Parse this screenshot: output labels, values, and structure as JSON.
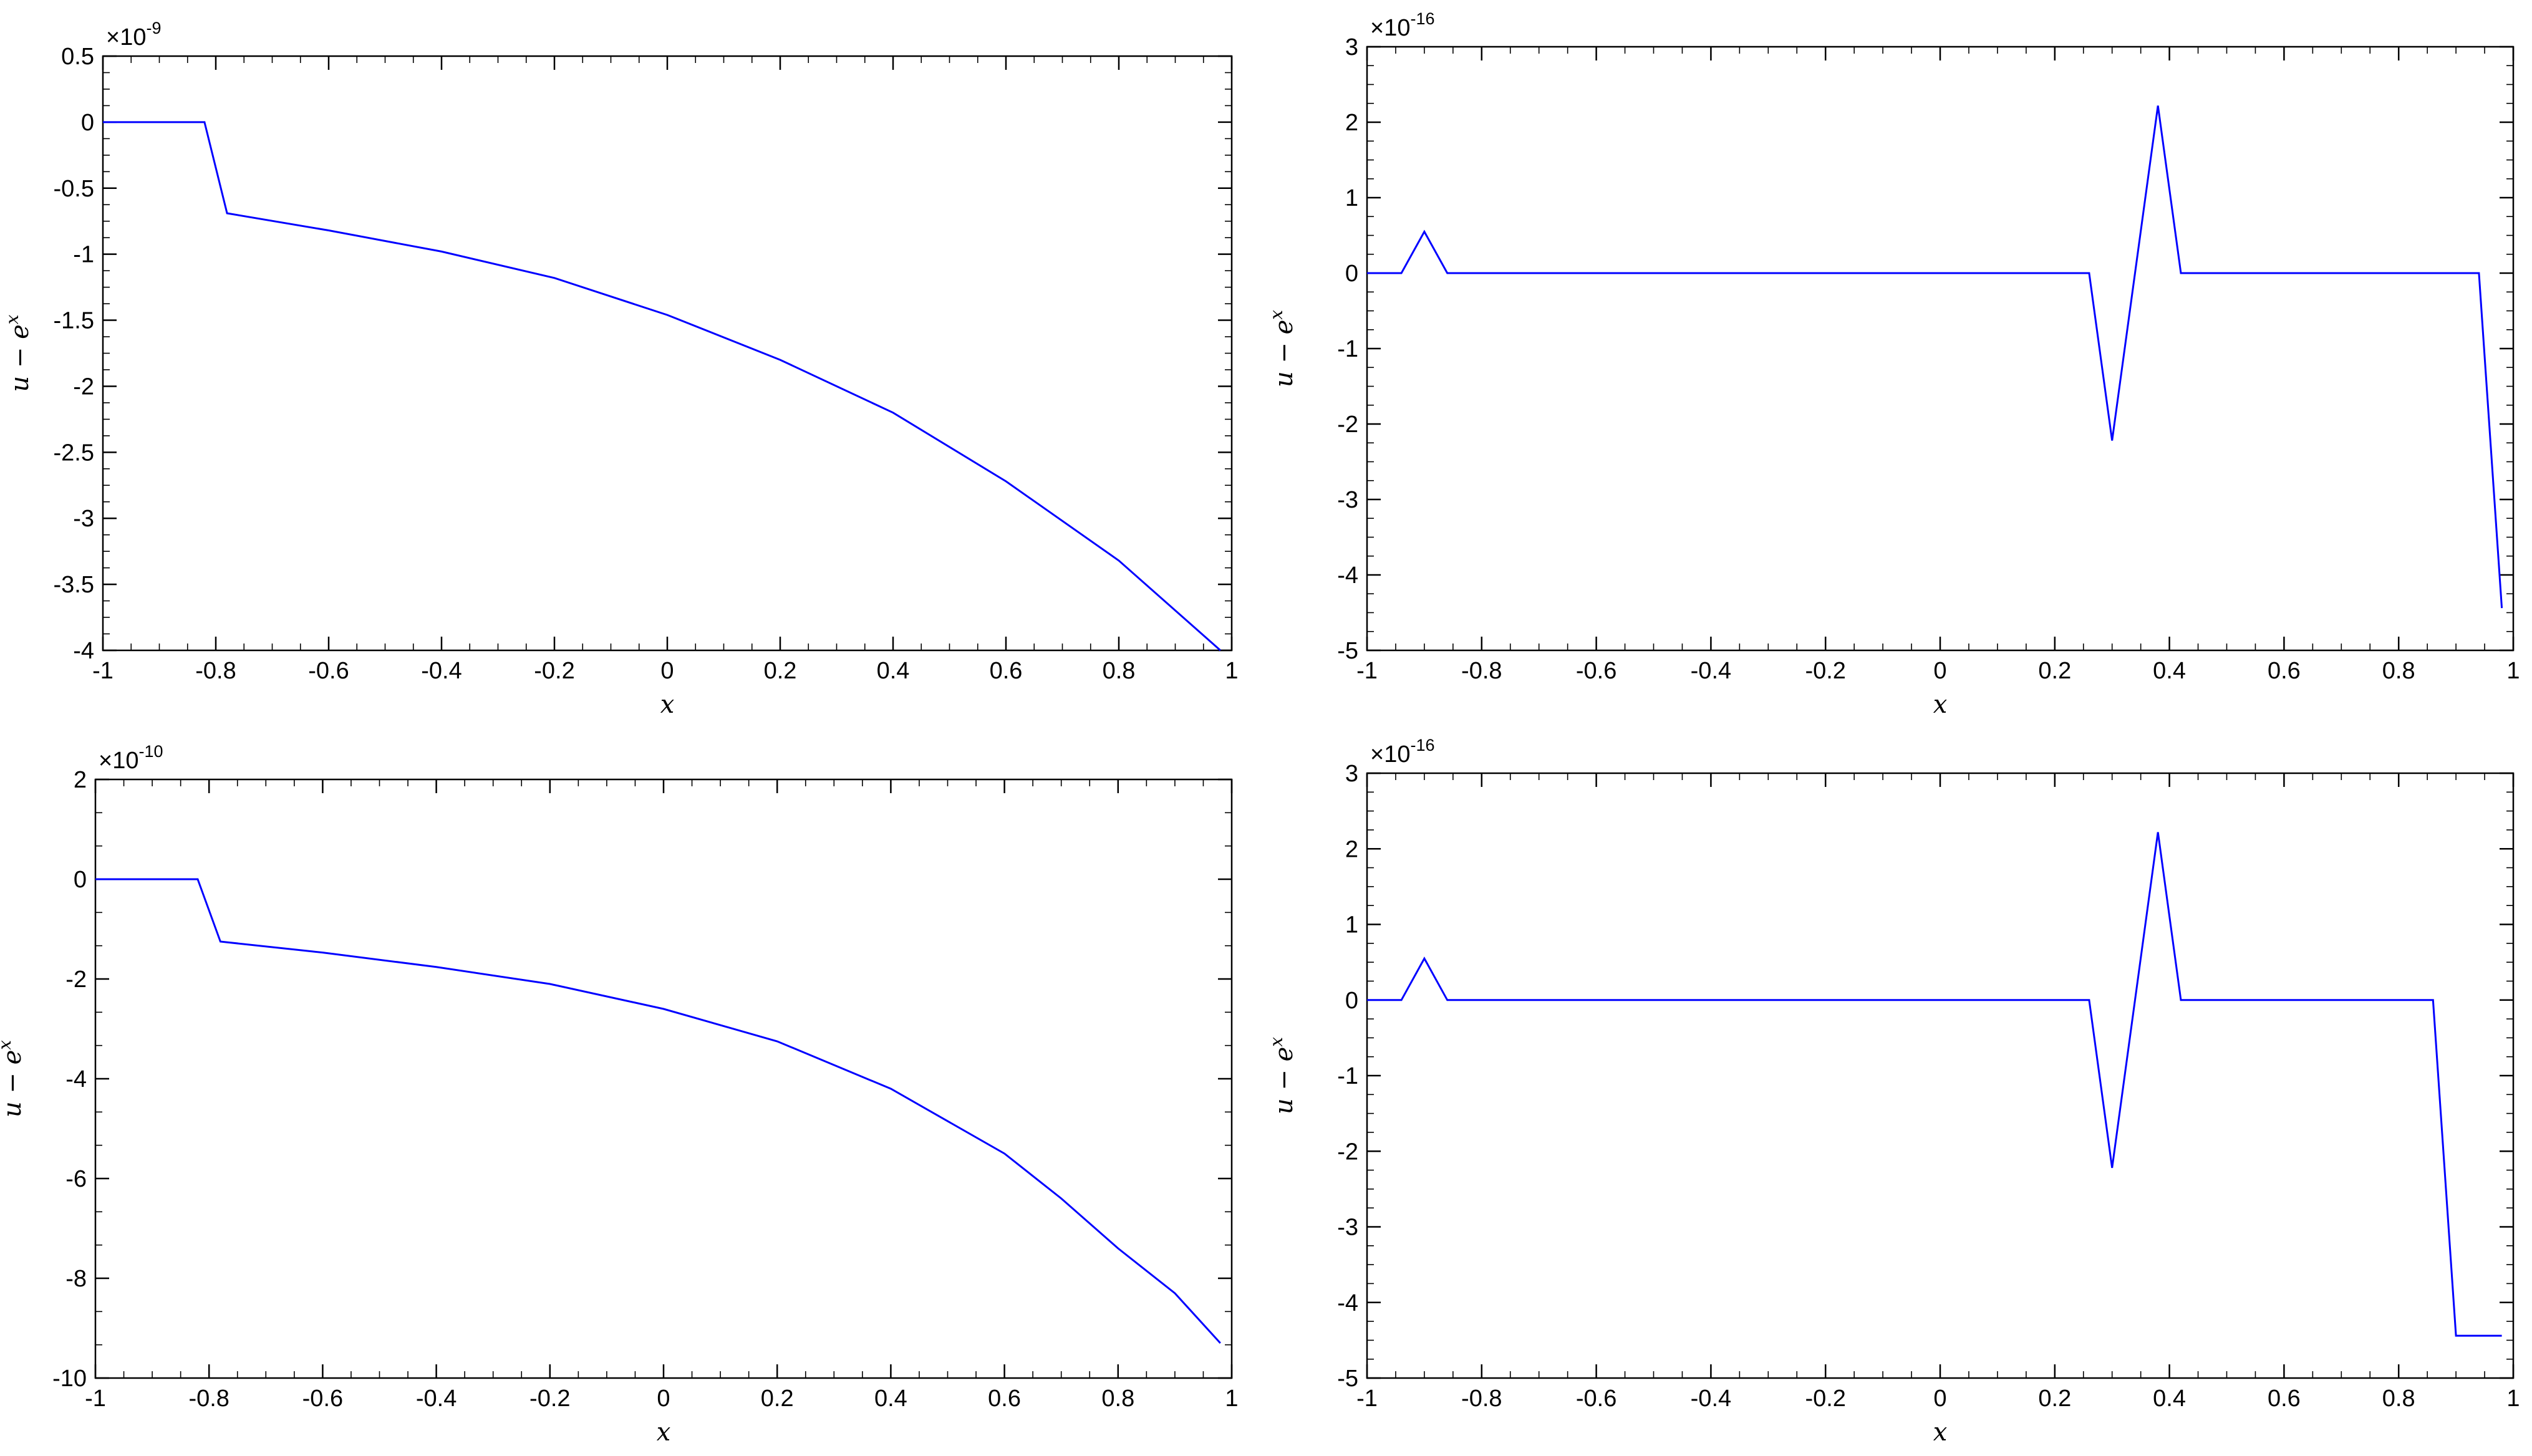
{
  "chart_data": [
    {
      "id": "top-left",
      "type": "line",
      "xlabel": "x",
      "ylabel": "u − e^x",
      "y_multiplier": "×10^-9",
      "y_multiplier_base": "×10",
      "y_multiplier_exp": "-9",
      "xlim": [
        -1,
        1
      ],
      "ylim": [
        -4,
        0.5
      ],
      "xticks": [
        "-1",
        "-0.8",
        "-0.6",
        "-0.4",
        "-0.2",
        "0",
        "0.2",
        "0.4",
        "0.6",
        "0.8",
        "1"
      ],
      "yticks": [
        "0.5",
        "0",
        "-0.5",
        "-1",
        "-1.5",
        "-2",
        "-2.5",
        "-3",
        "-3.5",
        "-4"
      ],
      "grid": false,
      "color": "#0000ff",
      "x": [
        -1,
        -0.82,
        -0.78,
        -0.6,
        -0.4,
        -0.2,
        0,
        0.2,
        0.4,
        0.6,
        0.8,
        0.98
      ],
      "y": [
        0,
        0,
        -0.69,
        -0.82,
        -0.98,
        -1.18,
        -1.46,
        -1.8,
        -2.2,
        -2.72,
        -3.32,
        -4.0
      ]
    },
    {
      "id": "top-right",
      "type": "line",
      "xlabel": "x",
      "ylabel": "u − e^x",
      "y_multiplier": "×10^-16",
      "y_multiplier_base": "×10",
      "y_multiplier_exp": "-16",
      "xlim": [
        -1,
        1
      ],
      "ylim": [
        -5,
        3
      ],
      "xticks": [
        "-1",
        "-0.8",
        "-0.6",
        "-0.4",
        "-0.2",
        "0",
        "0.2",
        "0.4",
        "0.6",
        "0.8",
        "1"
      ],
      "yticks": [
        "3",
        "2",
        "1",
        "0",
        "-1",
        "-2",
        "-3",
        "-4",
        "-5"
      ],
      "grid": false,
      "color": "#0000ff",
      "x": [
        -1,
        -0.94,
        -0.9,
        -0.86,
        0.26,
        0.3,
        0.38,
        0.42,
        0.94,
        0.98
      ],
      "y": [
        0,
        0,
        0.55,
        0,
        0,
        -2.22,
        2.22,
        0,
        0,
        -4.44
      ]
    },
    {
      "id": "bottom-left",
      "type": "line",
      "xlabel": "x",
      "ylabel": "u − e^x",
      "y_multiplier": "×10^-10",
      "y_multiplier_base": "×10",
      "y_multiplier_exp": "-10",
      "xlim": [
        -1,
        1
      ],
      "ylim": [
        -10,
        2
      ],
      "xticks": [
        "-1",
        "-0.8",
        "-0.6",
        "-0.4",
        "-0.2",
        "0",
        "0.2",
        "0.4",
        "0.6",
        "0.8",
        "1"
      ],
      "yticks": [
        "2",
        "0",
        "-2",
        "-4",
        "-6",
        "-8",
        "-10"
      ],
      "grid": false,
      "color": "#0000ff",
      "x": [
        -1,
        -0.82,
        -0.78,
        -0.6,
        -0.4,
        -0.2,
        0,
        0.2,
        0.4,
        0.6,
        0.7,
        0.8,
        0.9,
        0.98
      ],
      "y": [
        0,
        0,
        -1.25,
        -1.47,
        -1.76,
        -2.1,
        -2.6,
        -3.25,
        -4.2,
        -5.5,
        -6.4,
        -7.4,
        -8.3,
        -9.3
      ]
    },
    {
      "id": "bottom-right",
      "type": "line",
      "xlabel": "x",
      "ylabel": "u − e^x",
      "y_multiplier": "×10^-16",
      "y_multiplier_base": "×10",
      "y_multiplier_exp": "-16",
      "xlim": [
        -1,
        1
      ],
      "ylim": [
        -5,
        3
      ],
      "xticks": [
        "-1",
        "-0.8",
        "-0.6",
        "-0.4",
        "-0.2",
        "0",
        "0.2",
        "0.4",
        "0.6",
        "0.8",
        "1"
      ],
      "yticks": [
        "3",
        "2",
        "1",
        "0",
        "-1",
        "-2",
        "-3",
        "-4",
        "-5"
      ],
      "grid": false,
      "color": "#0000ff",
      "x": [
        -1,
        -0.94,
        -0.9,
        -0.86,
        0.26,
        0.3,
        0.38,
        0.42,
        0.86,
        0.9,
        0.98
      ],
      "y": [
        0,
        0,
        0.55,
        0,
        0,
        -2.22,
        2.22,
        0,
        0,
        -4.44,
        -4.44
      ]
    }
  ]
}
